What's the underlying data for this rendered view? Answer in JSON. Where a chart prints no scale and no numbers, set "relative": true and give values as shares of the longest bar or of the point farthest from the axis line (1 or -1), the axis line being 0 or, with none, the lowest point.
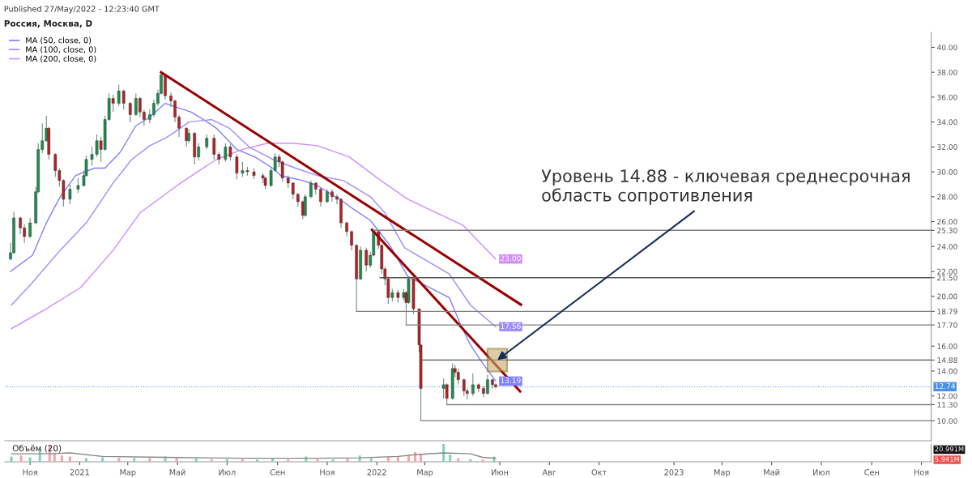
{
  "chart_data": [
    {
      "type": "candlestick",
      "subtitle": "Published 27/May/2022 - 12:23:40 GMT",
      "title": "Россия, Москва, D",
      "x": [
        "2020-10-08",
        "2020-10-12",
        "2020-10-20",
        "2020-10-25",
        "2020-11-01",
        "2020-11-08",
        "2020-11-11",
        "2020-11-16",
        "2020-11-21",
        "2020-11-24",
        "2020-12-02",
        "2020-12-07",
        "2020-12-12",
        "2020-12-20",
        "2020-12-30",
        "2021-01-06",
        "2021-01-09",
        "2021-01-16",
        "2021-01-22",
        "2021-01-27",
        "2021-02-01",
        "2021-02-06",
        "2021-02-11",
        "2021-02-18",
        "2021-02-24",
        "2021-03-04",
        "2021-03-11",
        "2021-03-16",
        "2021-03-21",
        "2021-03-28",
        "2021-04-02",
        "2021-04-07",
        "2021-04-11",
        "2021-04-16",
        "2021-04-23",
        "2021-04-28",
        "2021-05-03",
        "2021-05-12",
        "2021-05-15",
        "2021-05-22",
        "2021-05-27",
        "2021-06-06",
        "2021-06-15",
        "2021-06-21",
        "2021-06-29",
        "2021-07-05",
        "2021-07-13",
        "2021-07-20",
        "2021-07-26",
        "2021-08-03",
        "2021-08-14",
        "2021-08-17",
        "2021-08-24",
        "2021-08-29",
        "2021-09-03",
        "2021-09-07",
        "2021-09-14",
        "2021-09-20",
        "2021-09-26",
        "2021-10-02",
        "2021-10-05",
        "2021-10-12",
        "2021-10-18",
        "2021-10-24",
        "2021-11-01",
        "2021-11-07",
        "2021-11-13",
        "2021-11-18",
        "2021-11-25",
        "2021-12-01",
        "2021-12-07",
        "2021-12-12",
        "2021-12-19",
        "2021-12-24",
        "2021-12-28",
        "2022-01-03",
        "2022-01-07",
        "2022-01-11",
        "2022-01-15",
        "2022-01-20",
        "2022-01-27",
        "2022-02-03",
        "2022-02-06",
        "2022-02-09",
        "2022-02-15",
        "2022-02-22",
        "2022-02-24",
        "2022-03-24",
        "2022-03-28",
        "2022-04-04",
        "2022-04-07",
        "2022-04-11",
        "2022-04-18",
        "2022-04-22",
        "2022-04-29",
        "2022-05-06",
        "2022-05-12",
        "2022-05-17",
        "2022-05-23",
        "2022-05-27"
      ],
      "ohlc": [
        [
          23.0,
          24.3,
          22.9,
          23.5
        ],
        [
          23.5,
          26.8,
          23.4,
          26.3
        ],
        [
          26.3,
          26.4,
          25.0,
          25.5
        ],
        [
          25.5,
          25.8,
          24.3,
          24.8
        ],
        [
          24.8,
          26.3,
          24.7,
          25.9
        ],
        [
          25.9,
          28.8,
          25.8,
          28.4
        ],
        [
          28.4,
          32.3,
          28.3,
          31.8
        ],
        [
          31.8,
          33.9,
          31.5,
          32.5
        ],
        [
          32.5,
          34.5,
          32.4,
          33.5
        ],
        [
          33.5,
          33.6,
          31.0,
          31.4
        ],
        [
          31.4,
          31.5,
          29.6,
          30.1
        ],
        [
          30.1,
          30.3,
          28.8,
          29.3
        ],
        [
          29.3,
          29.4,
          27.2,
          27.8
        ],
        [
          27.8,
          29.0,
          27.4,
          28.6
        ],
        [
          28.6,
          29.5,
          28.3,
          28.9
        ],
        [
          28.9,
          30.1,
          28.8,
          29.7
        ],
        [
          29.7,
          31.3,
          29.6,
          31.0
        ],
        [
          31.0,
          32.0,
          30.5,
          31.4
        ],
        [
          31.4,
          33.0,
          31.2,
          32.5
        ],
        [
          32.5,
          32.8,
          30.8,
          31.8
        ],
        [
          31.8,
          34.5,
          31.7,
          34.2
        ],
        [
          34.2,
          36.3,
          34.1,
          35.9
        ],
        [
          35.9,
          36.2,
          34.8,
          35.5
        ],
        [
          35.5,
          37.0,
          35.3,
          36.5
        ],
        [
          36.5,
          36.6,
          35.0,
          35.5
        ],
        [
          35.5,
          35.6,
          34.0,
          34.6
        ],
        [
          34.6,
          36.3,
          34.5,
          35.9
        ],
        [
          35.9,
          36.0,
          34.4,
          34.8
        ],
        [
          34.8,
          35.0,
          33.7,
          34.2
        ],
        [
          34.2,
          35.0,
          33.9,
          34.6
        ],
        [
          34.6,
          35.8,
          34.4,
          35.5
        ],
        [
          35.5,
          36.6,
          35.3,
          36.3
        ],
        [
          36.3,
          38.0,
          36.2,
          37.8
        ],
        [
          37.8,
          37.9,
          35.8,
          36.1
        ],
        [
          36.1,
          36.4,
          35.2,
          35.7
        ],
        [
          35.7,
          35.8,
          34.0,
          34.4
        ],
        [
          34.4,
          34.6,
          32.8,
          33.5
        ],
        [
          33.5,
          33.6,
          32.0,
          32.5
        ],
        [
          32.5,
          33.4,
          32.3,
          33.1
        ],
        [
          33.1,
          33.2,
          30.6,
          31.2
        ],
        [
          31.2,
          32.3,
          30.9,
          32.0
        ],
        [
          32.0,
          33.0,
          31.8,
          32.7
        ],
        [
          32.7,
          33.0,
          31.0,
          31.4
        ],
        [
          31.4,
          31.6,
          30.6,
          31.0
        ],
        [
          31.0,
          32.3,
          30.8,
          32.0
        ],
        [
          32.0,
          32.2,
          30.9,
          31.2
        ],
        [
          31.2,
          31.4,
          29.4,
          29.9
        ],
        [
          29.9,
          30.8,
          29.6,
          30.1
        ],
        [
          30.1,
          30.4,
          29.7,
          30.0
        ],
        [
          30.0,
          30.3,
          29.4,
          29.7
        ],
        [
          29.7,
          29.9,
          29.1,
          29.5
        ],
        [
          29.5,
          29.6,
          28.6,
          28.9
        ],
        [
          28.9,
          30.4,
          28.8,
          30.1
        ],
        [
          30.1,
          31.5,
          30.0,
          31.2
        ],
        [
          31.2,
          31.4,
          30.4,
          30.8
        ],
        [
          30.8,
          30.9,
          29.2,
          29.5
        ],
        [
          29.5,
          29.7,
          28.7,
          29.1
        ],
        [
          29.1,
          29.2,
          27.8,
          28.2
        ],
        [
          28.2,
          28.3,
          27.2,
          27.6
        ],
        [
          27.6,
          27.7,
          26.2,
          26.5
        ],
        [
          26.5,
          28.2,
          26.4,
          28.0
        ],
        [
          28.0,
          29.3,
          27.9,
          29.1
        ],
        [
          29.1,
          29.2,
          28.2,
          28.6
        ],
        [
          28.6,
          28.7,
          27.2,
          27.6
        ],
        [
          27.6,
          28.6,
          27.5,
          28.4
        ],
        [
          28.4,
          28.6,
          27.6,
          28.0
        ],
        [
          28.0,
          28.2,
          27.4,
          27.8
        ],
        [
          27.8,
          27.9,
          25.5,
          25.9
        ],
        [
          25.9,
          26.0,
          24.8,
          25.2
        ],
        [
          25.2,
          25.3,
          23.7,
          24.1
        ],
        [
          24.1,
          24.2,
          18.79,
          21.4
        ],
        [
          21.4,
          24.0,
          21.3,
          23.7
        ],
        [
          23.7,
          23.9,
          22.0,
          22.5
        ],
        [
          22.5,
          23.6,
          22.3,
          23.3
        ],
        [
          23.3,
          25.3,
          23.2,
          25.2
        ],
        [
          25.2,
          25.2,
          23.8,
          24.1
        ],
        [
          24.1,
          24.2,
          21.8,
          22.2
        ],
        [
          22.2,
          22.4,
          20.9,
          21.4
        ],
        [
          21.4,
          21.6,
          19.4,
          19.9
        ],
        [
          19.9,
          20.6,
          19.6,
          20.3
        ],
        [
          20.3,
          20.5,
          19.5,
          19.9
        ],
        [
          19.9,
          20.6,
          19.7,
          20.3
        ],
        [
          20.3,
          20.4,
          17.7,
          19.5
        ],
        [
          19.5,
          21.5,
          19.4,
          21.4
        ],
        [
          21.4,
          21.4,
          18.6,
          19.0
        ],
        [
          19.0,
          19.0,
          15.5,
          16.1
        ],
        [
          16.1,
          16.1,
          10.0,
          12.6
        ],
        [
          12.6,
          13.4,
          11.8,
          12.9
        ],
        [
          12.9,
          13.0,
          11.3,
          11.8
        ],
        [
          11.8,
          14.6,
          11.7,
          14.2
        ],
        [
          14.2,
          14.5,
          13.5,
          13.9
        ],
        [
          13.9,
          14.2,
          12.9,
          13.3
        ],
        [
          13.3,
          13.4,
          12.0,
          12.4
        ],
        [
          12.4,
          12.6,
          11.7,
          12.2
        ],
        [
          12.2,
          13.8,
          12.0,
          12.9
        ],
        [
          12.9,
          13.0,
          12.3,
          12.6
        ],
        [
          12.6,
          12.8,
          11.9,
          12.2
        ],
        [
          12.2,
          13.7,
          12.1,
          13.3
        ],
        [
          13.3,
          13.4,
          12.6,
          12.9
        ],
        [
          12.9,
          13.0,
          12.6,
          12.74
        ]
      ],
      "series": [
        {
          "type": "line",
          "name": "MA (50, close, 0)",
          "color": "#7f7fff",
          "x": [
            "2020-10-08",
            "2020-11-04",
            "2020-11-21",
            "2020-12-08",
            "2020-12-27",
            "2021-01-19",
            "2021-02-01",
            "2021-02-20",
            "2021-03-11",
            "2021-03-28",
            "2021-04-16",
            "2021-05-18",
            "2021-06-02",
            "2021-06-18",
            "2021-07-13",
            "2021-08-04",
            "2021-08-26",
            "2021-09-05",
            "2021-10-02",
            "2021-10-20",
            "2021-11-06",
            "2021-11-21",
            "2021-12-01",
            "2021-12-24",
            "2022-01-17",
            "2022-02-08",
            "2022-03-31",
            "2022-04-14",
            "2022-04-26",
            "2022-05-09",
            "2022-05-27"
          ],
          "values": [
            22.0,
            23.3,
            25.9,
            28.0,
            29.7,
            30.3,
            30.3,
            31.6,
            33.7,
            34.4,
            35.5,
            34.8,
            34.2,
            33.5,
            31.8,
            31.2,
            30.3,
            29.7,
            29.3,
            28.9,
            28.2,
            27.6,
            27.1,
            26.1,
            24.1,
            21.6,
            19.9,
            17.7,
            16.1,
            14.8,
            13.19
          ],
          "value_labels": [
            null,
            null,
            null,
            null,
            null,
            null,
            null,
            null,
            null,
            null,
            null,
            null,
            null,
            null,
            null,
            null,
            null,
            null,
            null,
            null,
            null,
            null,
            null,
            null,
            null,
            null,
            null,
            null,
            null,
            null,
            "13.19"
          ]
        },
        {
          "type": "line",
          "name": "MA (100, close, 0)",
          "color": "#a08cff",
          "x": [
            "2020-10-09",
            "2020-11-01",
            "2020-12-08",
            "2021-01-09",
            "2021-02-11",
            "2021-03-06",
            "2021-03-28",
            "2021-04-16",
            "2021-04-28",
            "2021-05-15",
            "2021-06-12",
            "2021-07-04",
            "2021-07-28",
            "2021-08-26",
            "2021-09-23",
            "2021-10-20",
            "2021-11-21",
            "2021-12-24",
            "2022-01-11",
            "2022-02-04",
            "2022-03-31",
            "2022-04-26",
            "2022-05-27"
          ],
          "values": [
            19.3,
            20.9,
            23.7,
            25.9,
            29.1,
            31.0,
            32.1,
            32.7,
            33.2,
            34.0,
            34.2,
            33.5,
            32.0,
            31.0,
            30.3,
            29.7,
            29.3,
            28.0,
            26.7,
            23.9,
            21.8,
            19.3,
            17.56
          ],
          "value_labels": [
            null,
            null,
            null,
            null,
            null,
            null,
            null,
            null,
            null,
            null,
            null,
            null,
            null,
            null,
            null,
            null,
            null,
            null,
            null,
            null,
            null,
            null,
            "17.56"
          ]
        },
        {
          "type": "line",
          "name": "MA (200, close, 0)",
          "color": "#d28cff",
          "x": [
            "2020-10-09",
            "2020-11-21",
            "2021-01-02",
            "2021-02-11",
            "2021-03-16",
            "2021-04-16",
            "2021-05-05",
            "2021-06-18",
            "2021-07-20",
            "2021-08-20",
            "2021-09-20",
            "2021-10-20",
            "2021-11-28",
            "2022-01-06",
            "2022-02-08",
            "2022-04-17",
            "2022-05-27"
          ],
          "values": [
            17.4,
            19.0,
            20.7,
            23.7,
            26.7,
            28.2,
            29.1,
            31.0,
            31.8,
            32.3,
            32.3,
            32.1,
            31.2,
            29.3,
            27.8,
            25.7,
            23.0
          ],
          "value_labels": [
            null,
            null,
            null,
            null,
            null,
            null,
            null,
            null,
            null,
            null,
            null,
            null,
            null,
            null,
            null,
            null,
            "23.00"
          ]
        },
        {
          "type": "line",
          "color": "#990000",
          "x": [
            "2021-04-11",
            "2022-06-27"
          ],
          "values": [
            38.0,
            19.33
          ]
        },
        {
          "type": "line",
          "color": "#990000",
          "x": [
            "2021-12-26",
            "2022-06-26"
          ],
          "values": [
            25.35,
            12.36
          ]
        },
        {
          "type": "line",
          "color": "#808080",
          "x": [
            "2021-12-28",
            "2023-11-13"
          ],
          "values": [
            25.3,
            25.3
          ]
        },
        {
          "type": "line",
          "color": "#555555",
          "x": [
            "2022-01-05",
            "2023-11-13"
          ],
          "values": [
            21.5,
            21.5
          ]
        },
        {
          "type": "line",
          "color": "#808080",
          "x": [
            "2021-12-07",
            "2023-11-13"
          ],
          "values": [
            18.79,
            18.79
          ]
        },
        {
          "type": "line",
          "color": "#808080",
          "x": [
            "2022-02-06",
            "2023-11-13"
          ],
          "values": [
            17.7,
            17.7
          ]
        },
        {
          "type": "line",
          "color": "#555555",
          "x": [
            "2022-02-24",
            "2023-11-13"
          ],
          "values": [
            14.88,
            14.88
          ]
        },
        {
          "type": "line",
          "color": "#808080",
          "x": [
            "2022-03-28",
            "2023-11-13"
          ],
          "values": [
            11.3,
            11.3
          ]
        },
        {
          "type": "line",
          "color": "#808080",
          "x": [
            "2022-02-24",
            "2023-11-13"
          ],
          "values": [
            10.0,
            10.0
          ]
        }
      ],
      "ref_lines": [
        {
          "axis": "y",
          "value": 12.74,
          "label": "12.74",
          "color": "#4a8fe8",
          "line_style": "dotted"
        }
      ],
      "annotations": [
        {
          "text": "Уровень 14.88 - ключевая среднесрочная\nобласть сопротивления",
          "x": "2022-05-29",
          "y": 14.88
        }
      ],
      "xlim": [
        "2020-10-01",
        "2023-11-13"
      ],
      "ylim": [
        8.4,
        41.2
      ],
      "yticks": [
        {
          "value": 10,
          "label": "10.00"
        },
        {
          "value": 11.3,
          "label": "11.30"
        },
        {
          "value": 12,
          "label": "12.00"
        },
        {
          "value": 14,
          "label": "14.00"
        },
        {
          "value": 14.88,
          "label": "14.88"
        },
        {
          "value": 16,
          "label": "16.00"
        },
        {
          "value": 17.7,
          "label": "17.70"
        },
        {
          "value": 18.79,
          "label": "18.79"
        },
        {
          "value": 20,
          "label": "20.00"
        },
        {
          "value": 21.5,
          "label": "21.50"
        },
        {
          "value": 22,
          "label": "22.00"
        },
        {
          "value": 24,
          "label": "24.00"
        },
        {
          "value": 25.3,
          "label": "25.30"
        },
        {
          "value": 26,
          "label": "26.00"
        },
        {
          "value": 28,
          "label": "28.00"
        },
        {
          "value": 30,
          "label": "30.00"
        },
        {
          "value": 32,
          "label": "32.00"
        },
        {
          "value": 34,
          "label": "34.00"
        },
        {
          "value": 36,
          "label": "36.00"
        },
        {
          "value": 38,
          "label": "38.00"
        },
        {
          "value": 40,
          "label": "40.00"
        }
      ],
      "tick_labels": "y",
      "legend": "top left"
    },
    {
      "type": "bar",
      "title": "Объём (20)",
      "relative": true,
      "series": [
        {
          "type": "bar",
          "x": [
            "2020-10-09",
            "2020-10-21",
            "2020-11-01",
            "2020-11-13",
            "2020-11-25",
            "2020-12-01",
            "2020-12-10",
            "2020-12-20",
            "2021-01-09",
            "2021-01-29",
            "2021-02-18",
            "2021-03-09",
            "2021-03-28",
            "2021-04-16",
            "2021-04-30",
            "2021-05-24",
            "2021-06-12",
            "2021-07-01",
            "2021-07-20",
            "2021-08-07",
            "2021-08-26",
            "2021-09-14",
            "2021-10-06",
            "2021-10-20",
            "2021-11-08",
            "2021-11-26",
            "2021-12-11",
            "2021-12-25",
            "2022-01-15",
            "2022-01-27",
            "2022-02-09",
            "2022-02-17",
            "2022-02-24",
            "2022-03-24",
            "2022-04-01",
            "2022-04-11",
            "2022-04-26",
            "2022-05-11",
            "2022-05-25"
          ],
          "values": [
            0.3,
            0.35,
            0.25,
            0.7,
            0.95,
            0.45,
            0.35,
            0.3,
            0.2,
            0.25,
            0.2,
            0.22,
            0.2,
            0.3,
            0.25,
            0.18,
            0.15,
            0.15,
            0.14,
            0.12,
            0.18,
            0.14,
            0.3,
            0.15,
            0.14,
            0.2,
            0.35,
            0.2,
            0.28,
            0.3,
            0.35,
            0.55,
            0.45,
            1.0,
            0.4,
            0.2,
            0.15,
            0.12,
            0.3
          ],
          "colors": [
            "#7ed6b0",
            "#f5a5a5",
            "#7ed6b0",
            "#7ed6b0",
            "#f5a5a5",
            "#f5a5a5",
            "#f5a5a5",
            "#f5a5a5",
            "#7ed6b0",
            "#7ed6b0",
            "#f5a5a5",
            "#7ed6b0",
            "#f5a5a5",
            "#7ed6b0",
            "#f5a5a5",
            "#7ed6b0",
            "#f5a5a5",
            "#7ed6b0",
            "#f5a5a5",
            "#7ed6b0",
            "#7ed6b0",
            "#f5a5a5",
            "#7ed6b0",
            "#f5a5a5",
            "#7ed6b0",
            "#f5a5a5",
            "#7ed6b0",
            "#7ed6b0",
            "#f5a5a5",
            "#f5a5a5",
            "#f5a5a5",
            "#f5a5a5",
            "#f5a5a5",
            "#7ed6b0",
            "#7ed6b0",
            "#f5a5a5",
            "#7ed6b0",
            "#f5a5a5",
            "#7ed6b0"
          ]
        },
        {
          "type": "line",
          "color": "#888888",
          "x": [
            "2020-10-09",
            "2020-11-21",
            "2020-12-20",
            "2021-01-29",
            "2021-04-16",
            "2021-07-20",
            "2021-10-20",
            "2021-12-11",
            "2022-01-27",
            "2022-02-17",
            "2022-03-24",
            "2022-04-26",
            "2022-05-11",
            "2022-05-27"
          ],
          "values": [
            0.45,
            0.45,
            0.5,
            0.3,
            0.25,
            0.2,
            0.2,
            0.22,
            0.3,
            0.4,
            0.5,
            0.45,
            0.25,
            0.2
          ]
        }
      ],
      "annotations": [
        "20.991M",
        "5.941M"
      ],
      "xlim": [
        "2020-10-01",
        "2023-11-13"
      ],
      "xticks": [
        {
          "value": "2020-11-01",
          "label": "Ноя"
        },
        {
          "value": "2021-01-01",
          "label": "2021"
        },
        {
          "value": "2021-03-01",
          "label": "Мар"
        },
        {
          "value": "2021-05-01",
          "label": "Май"
        },
        {
          "value": "2021-07-01",
          "label": "Июл"
        },
        {
          "value": "2021-09-01",
          "label": "Сен"
        },
        {
          "value": "2021-11-01",
          "label": "Ноя"
        },
        {
          "value": "2022-01-01",
          "label": "2022"
        },
        {
          "value": "2022-03-01",
          "label": "Мар"
        },
        {
          "value": "2022-06-01",
          "label": "Июн"
        },
        {
          "value": "2022-08-01",
          "label": "Авг"
        },
        {
          "value": "2022-10-01",
          "label": "Окт"
        },
        {
          "value": "2023-01-01",
          "label": "2023"
        },
        {
          "value": "2023-03-01",
          "label": "Мар"
        },
        {
          "value": "2023-05-01",
          "label": "Май"
        },
        {
          "value": "2023-07-01",
          "label": "Июл"
        },
        {
          "value": "2023-09-01",
          "label": "Сен"
        },
        {
          "value": "2023-11-01",
          "label": "Ноя"
        }
      ],
      "tick_labels": "x"
    }
  ]
}
